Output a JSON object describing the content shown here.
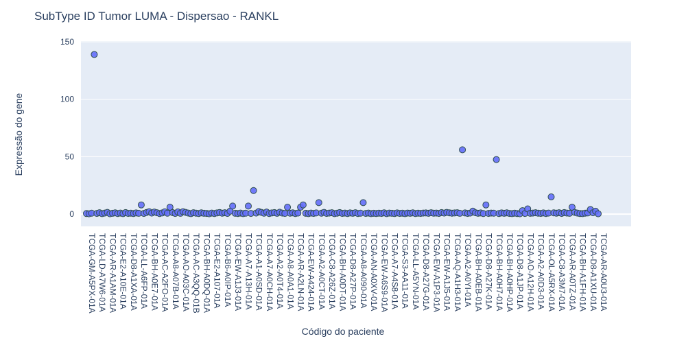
{
  "chart_data": {
    "type": "scatter",
    "title": "SubType ID Tumor LUMA - Dispersao - RANKL",
    "x_label": "Código do paciente",
    "y_label": "Expressão do gene",
    "categories": [
      "TCGA-GM-A5PX-01A",
      null,
      null,
      null,
      "TCGA-LD-A7W6-01A",
      null,
      null,
      null,
      "TCGA-AR-A1AM-01A",
      null,
      null,
      null,
      "TCGA-E2-A10E-01A",
      null,
      null,
      null,
      "TCGA-D8-A1XA-01A",
      null,
      null,
      null,
      "TCGA-LL-A6FP-01A",
      null,
      null,
      null,
      "TCGA-BH-A0E7-01A",
      null,
      null,
      null,
      "TCGA-AC-A2FO-01A",
      null,
      null,
      null,
      "TCGA-A8-A07B-01A",
      null,
      null,
      null,
      "TCGA-AO-A03C-01A",
      null,
      null,
      null,
      "TCGA-AC-A3QQ-01B",
      null,
      null,
      null,
      "TCGA-BH-A0DQ-01A",
      null,
      null,
      null,
      "TCGA-E2-A107-01A",
      null,
      null,
      null,
      "TCGA-B6-A0IP-01A",
      null,
      null,
      null,
      "TCGA-EW-A1J3-01A",
      null,
      null,
      null,
      "TCGA-A7-A13H-01A",
      null,
      null,
      null,
      "TCGA-A1-A0SD-01A",
      null,
      null,
      null,
      "TCGA-A7-A0CH-01A",
      null,
      null,
      null,
      "TCGA-A2-A0T4-01A",
      null,
      null,
      null,
      "TCGA-A8-A0A1-01A",
      null,
      null,
      null,
      "TCGA-AR-A2LN-01A",
      null,
      null,
      null,
      "TCGA-EW-A424-01A",
      null,
      null,
      null,
      "TCGA-A2-A0CT-01A",
      null,
      null,
      null,
      "TCGA-C8-A26Z-01A",
      null,
      null,
      null,
      "TCGA-BH-A0DT-01A",
      null,
      null,
      null,
      "TCGA-D8-A27P-01A",
      null,
      null,
      null,
      "TCGA-A8-A090-01A",
      null,
      null,
      null,
      "TCGA-AN-A0XV-01A",
      null,
      null,
      null,
      "TCGA-EW-A6S9-01A",
      null,
      null,
      null,
      "TCGA-A7-A4S8-01A",
      null,
      null,
      null,
      "TCGA-S3-AA11-01A",
      null,
      null,
      null,
      "TCGA-LL-A5YN-01A",
      null,
      null,
      null,
      "TCGA-D8-A27G-01A",
      null,
      null,
      null,
      "TCGA-EW-A1P3-01A",
      null,
      null,
      null,
      "TCGA-EW-A1J5-01A",
      null,
      null,
      null,
      "TCGA-AQ-A1H3-01A",
      null,
      null,
      null,
      "TCGA-A2-A0YI-01A",
      null,
      null,
      null,
      "TCGA-BH-A0EB-01A",
      null,
      null,
      null,
      "TCGA-D8-A27K-01A",
      null,
      null,
      null,
      "TCGA-BH-A0H7-01A",
      null,
      null,
      null,
      "TCGA-BH-A0HP-01A",
      null,
      null,
      null,
      "TCGA-D8-A1JP-01A",
      null,
      null,
      null,
      "TCGA-AO-A12H-01A",
      null,
      null,
      null,
      "TCGA-A2-A0D3-01A",
      null,
      null,
      null,
      "TCGA-OL-A5RX-01A",
      null,
      null,
      null,
      "TCGA-C8-A3M7-01A",
      null,
      null,
      null,
      "TCGA-AR-A0TZ-01A",
      null,
      null,
      null,
      "TCGA-BH-A1FH-01A",
      null,
      null,
      null,
      "TCGA-D8-A1XU-01A",
      null,
      null,
      null,
      "TCGA-AR-A0U3-01A"
    ],
    "values": [
      0.5,
      0.3,
      0.8,
      139,
      0.6,
      1.2,
      0.4,
      0.9,
      1.5,
      0.3,
      0.7,
      1.1,
      0.5,
      0.9,
      0.4,
      1.3,
      0.6,
      0.8,
      0.5,
      1.0,
      0.7,
      8,
      0.6,
      1.4,
      2.1,
      0.9,
      1.8,
      1.2,
      0.5,
      1.0,
      2.0,
      0.8,
      6,
      1.3,
      0.6,
      1.9,
      0.7,
      2.1,
      1.5,
      0.9,
      0.4,
      1.2,
      0.8,
      0.5,
      1.1,
      0.7,
      0.6,
      0.3,
      0.9,
      0.5,
      1.0,
      1.4,
      0.8,
      1.2,
      0.6,
      2.5,
      7,
      0.7,
      0.5,
      0.9,
      0.4,
      0.8,
      7,
      0.6,
      20.5,
      0.9,
      2.2,
      1.5,
      0.8,
      1.8,
      0.5,
      1.0,
      1.3,
      0.7,
      1.6,
      0.9,
      0.6,
      6,
      0.8,
      1.1,
      0.5,
      0.9,
      6,
      8,
      0.7,
      0.4,
      0.9,
      0.6,
      1.0,
      10,
      0.8,
      1.5,
      0.6,
      0.9,
      1.2,
      0.4,
      0.8,
      1.3,
      0.6,
      0.9,
      0.5,
      1.0,
      0.7,
      1.2,
      0.5,
      0.8,
      10,
      0.6,
      0.9,
      0.4,
      0.7,
      0.5,
      0.8,
      0.6,
      1.1,
      0.4,
      0.9,
      0.7,
      0.5,
      1.0,
      0.6,
      0.8,
      0.4,
      0.9,
      0.7,
      1.1,
      0.5,
      0.8,
      0.6,
      0.9,
      1.0,
      0.7,
      1.2,
      0.8,
      0.9,
      0.6,
      1.3,
      0.9,
      1.5,
      1.1,
      0.8,
      1.0,
      1.2,
      0.7,
      56,
      1.0,
      0.6,
      0.9,
      2.6,
      1.2,
      0.7,
      1.0,
      0.5,
      8,
      0.6,
      0.9,
      0.8,
      47.5,
      0.5,
      1.0,
      0.7,
      1.1,
      0.6,
      0.4,
      0.8,
      0.5,
      0.3,
      3,
      0.6,
      4.5,
      0.7,
      0.9,
      1.2,
      0.8,
      0.6,
      1.0,
      0.5,
      0.9,
      15,
      1.1,
      0.8,
      1.2,
      0.6,
      1.3,
      0.9,
      0.7,
      6,
      1.5,
      0.9,
      0.5,
      0.4,
      0.8,
      1.0,
      4,
      1.2,
      2.5,
      0.3
    ],
    "color": "#636efa",
    "ylim": [
      -10.7,
      150.6
    ],
    "yticks": [
      0,
      50,
      100,
      150
    ],
    "grid": true
  }
}
